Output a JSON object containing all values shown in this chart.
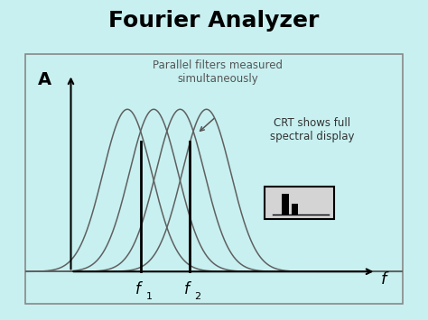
{
  "title": "Fourier Analyzer",
  "title_fontsize": 18,
  "title_fontweight": "bold",
  "outer_background": "#c8f0f0",
  "panel_bg": "#d4d4d4",
  "annotation_text": "Parallel filters measured\nsimultaneously",
  "crt_text": "CRT shows full\nspectral display",
  "f_label": "f",
  "A_label": "A",
  "gaussian_centers": [
    0.27,
    0.34,
    0.41,
    0.48
  ],
  "gaussian_sigma": 0.065,
  "gaussian_amplitude": 1.0,
  "line1_x": 0.305,
  "line2_x": 0.435,
  "x_axis_start": 0.12,
  "x_axis_end": 0.93,
  "y_axis_start": 0.13,
  "y_axis_top": 0.92,
  "baseline_y": 0.13
}
